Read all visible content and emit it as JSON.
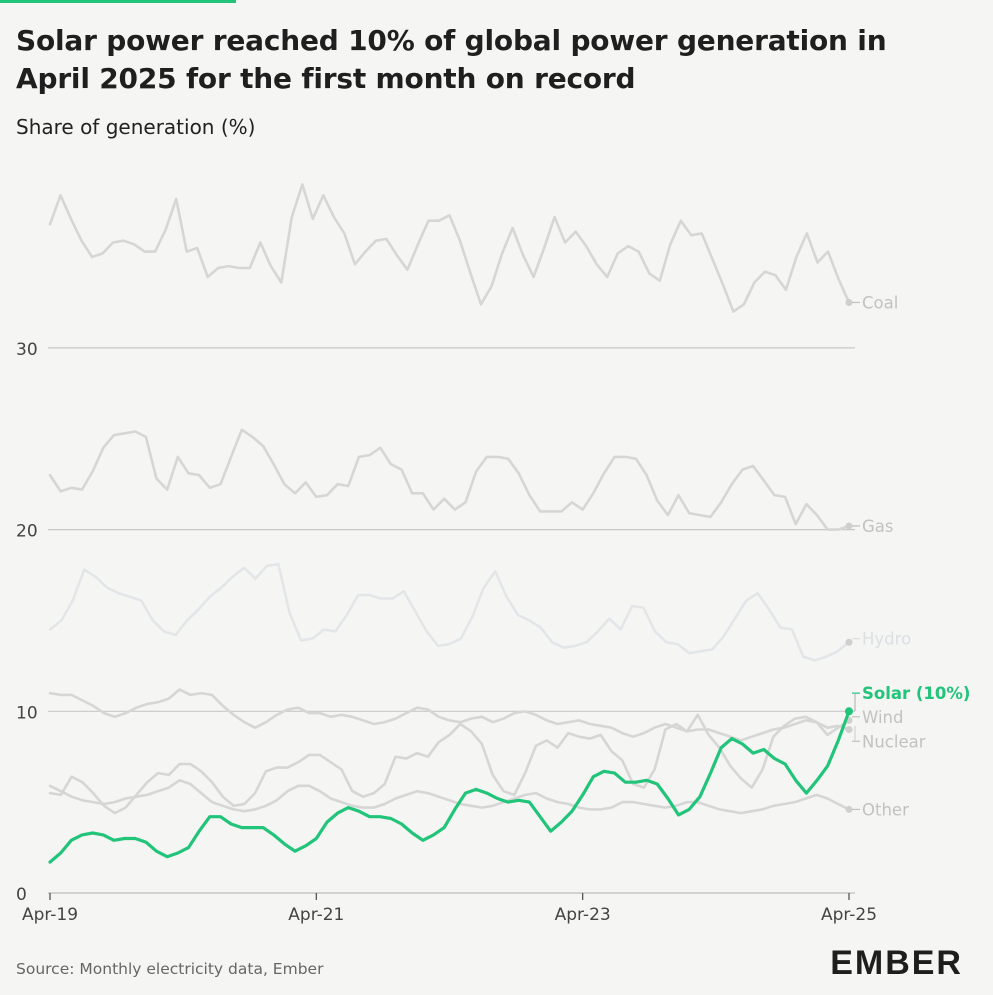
{
  "header": {
    "title": "Solar power reached 10% of global power generation in April 2025 for the first month on record",
    "subtitle": "Share of generation (%)"
  },
  "footer": {
    "source": "Source: Monthly electricity data, Ember",
    "logo_text": "EMBER"
  },
  "colors": {
    "accent": "#22c47a",
    "muted_line": "#d6d6d6",
    "muted_label": "#c2c2c2",
    "grid": "#c8c8c8",
    "axis_text": "#444444"
  },
  "chart_data": {
    "type": "line",
    "title": "Solar power reached 10% of global power generation in April 2025 for the first month on record",
    "ylabel": "Share of generation (%)",
    "xlabel": "",
    "x_start": "Apr-19",
    "x_end": "Apr-25",
    "x_ticks": [
      "Apr-19",
      "Apr-21",
      "Apr-23",
      "Apr-25"
    ],
    "y_ticks": [
      0,
      10,
      20,
      30
    ],
    "ylim": [
      0,
      39
    ],
    "grid": true,
    "series": [
      {
        "name": "Coal",
        "label": "Coal",
        "highlight": false,
        "values": [
          36.8,
          38.4,
          37.1,
          35.9,
          35.0,
          35.2,
          35.8,
          35.9,
          35.7,
          35.3,
          35.3,
          36.5,
          38.2,
          35.3,
          35.5,
          33.9,
          34.4,
          34.5,
          34.4,
          34.4,
          35.8,
          34.5,
          33.6,
          37.2,
          39.0,
          37.1,
          38.4,
          37.2,
          36.3,
          34.6,
          35.3,
          35.9,
          36.0,
          35.1,
          34.3,
          35.7,
          37.0,
          37.0,
          37.3,
          35.9,
          34.1,
          32.4,
          33.4,
          35.2,
          36.6,
          35.1,
          33.9,
          35.5,
          37.2,
          35.8,
          36.4,
          35.6,
          34.6,
          33.9,
          35.2,
          35.6,
          35.3,
          34.1,
          33.7,
          35.7,
          37.0,
          36.2,
          36.3,
          34.9,
          33.5,
          32.0,
          32.4,
          33.6,
          34.2,
          34.0,
          33.2,
          35.0,
          36.3,
          34.7,
          35.3,
          33.8,
          32.5
        ]
      },
      {
        "name": "Gas",
        "label": "Gas",
        "highlight": false,
        "values": [
          23.0,
          22.1,
          22.3,
          22.2,
          23.2,
          24.5,
          25.2,
          25.3,
          25.4,
          25.1,
          22.8,
          22.2,
          24.0,
          23.1,
          23.0,
          22.3,
          22.5,
          24.0,
          25.5,
          25.1,
          24.6,
          23.6,
          22.5,
          22.0,
          22.6,
          21.8,
          21.9,
          22.5,
          22.4,
          24.0,
          24.1,
          24.5,
          23.6,
          23.3,
          22.0,
          22.0,
          21.1,
          21.7,
          21.1,
          21.5,
          23.2,
          24.0,
          24.0,
          23.9,
          23.1,
          21.9,
          21.0,
          21.0,
          21.0,
          21.5,
          21.1,
          22.0,
          23.1,
          24.0,
          24.0,
          23.9,
          23.0,
          21.6,
          20.8,
          21.9,
          20.9,
          20.8,
          20.7,
          21.5,
          22.5,
          23.3,
          23.5,
          22.7,
          21.9,
          21.8,
          20.3,
          21.4,
          20.8,
          20.0,
          20.0,
          20.2
        ]
      },
      {
        "name": "Hydro",
        "label": "Hydro",
        "highlight": false,
        "values": [
          14.5,
          15.0,
          16.1,
          17.8,
          17.4,
          16.8,
          16.5,
          16.3,
          16.1,
          15.0,
          14.4,
          14.2,
          15.0,
          15.6,
          16.3,
          16.8,
          17.4,
          17.9,
          17.3,
          18.0,
          18.1,
          15.4,
          13.9,
          14.0,
          14.5,
          14.4,
          15.3,
          16.4,
          16.4,
          16.2,
          16.2,
          16.6,
          15.5,
          14.4,
          13.6,
          13.7,
          14.0,
          15.2,
          16.8,
          17.7,
          16.3,
          15.3,
          15.0,
          14.6,
          13.8,
          13.5,
          13.6,
          13.8,
          14.4,
          15.1,
          14.5,
          15.8,
          15.7,
          14.4,
          13.8,
          13.7,
          13.2,
          13.3,
          13.4,
          14.1,
          15.1,
          16.1,
          16.5,
          15.6,
          14.6,
          14.5,
          13.0,
          12.8,
          13.0,
          13.3,
          13.8
        ]
      },
      {
        "name": "Wind",
        "label": "Wind",
        "highlight": false,
        "values": [
          5.5,
          5.4,
          6.4,
          6.1,
          5.5,
          4.8,
          4.4,
          4.7,
          5.4,
          6.1,
          6.6,
          6.5,
          7.1,
          7.1,
          6.7,
          6.1,
          5.3,
          4.8,
          4.9,
          5.5,
          6.7,
          6.9,
          6.9,
          7.2,
          7.6,
          7.6,
          7.2,
          6.8,
          5.6,
          5.3,
          5.5,
          6.0,
          7.5,
          7.4,
          7.7,
          7.5,
          8.3,
          8.7,
          9.3,
          8.9,
          8.2,
          6.5,
          5.6,
          5.4,
          6.6,
          8.1,
          8.4,
          8.0,
          8.8,
          8.6,
          8.5,
          8.7,
          7.8,
          7.3,
          6.0,
          5.8,
          6.8,
          9.0,
          9.3,
          8.9,
          9.8,
          8.7,
          8.0,
          7.0,
          6.3,
          5.8,
          6.8,
          8.6,
          9.2,
          9.6,
          9.7,
          9.4,
          8.7,
          9.1,
          9.5
        ]
      },
      {
        "name": "Nuclear",
        "label": "Nuclear",
        "highlight": false,
        "values": [
          11.0,
          10.9,
          10.9,
          10.6,
          10.3,
          9.9,
          9.7,
          9.9,
          10.2,
          10.4,
          10.5,
          10.7,
          11.2,
          10.9,
          11.0,
          10.9,
          10.3,
          9.8,
          9.4,
          9.1,
          9.4,
          9.8,
          10.1,
          10.2,
          9.9,
          9.9,
          9.7,
          9.8,
          9.7,
          9.5,
          9.3,
          9.4,
          9.6,
          9.9,
          10.2,
          10.1,
          9.7,
          9.5,
          9.4,
          9.6,
          9.7,
          9.4,
          9.6,
          9.9,
          10.0,
          9.8,
          9.5,
          9.3,
          9.4,
          9.5,
          9.3,
          9.2,
          9.1,
          8.8,
          8.6,
          8.8,
          9.1,
          9.3,
          9.1,
          8.9,
          9.0,
          9.0,
          8.8,
          8.6,
          8.4,
          8.6,
          8.8,
          9.0,
          9.1,
          9.3,
          9.5,
          9.4,
          9.1,
          9.2,
          9.0
        ]
      },
      {
        "name": "Other",
        "label": "Other",
        "highlight": false,
        "values": [
          5.9,
          5.6,
          5.3,
          5.1,
          5.0,
          4.9,
          5.0,
          5.2,
          5.3,
          5.4,
          5.6,
          5.8,
          6.2,
          6.0,
          5.5,
          5.0,
          4.8,
          4.6,
          4.5,
          4.6,
          4.8,
          5.1,
          5.6,
          5.9,
          5.9,
          5.6,
          5.2,
          5.0,
          4.8,
          4.7,
          4.7,
          4.9,
          5.2,
          5.4,
          5.6,
          5.5,
          5.3,
          5.1,
          4.9,
          4.8,
          4.7,
          4.8,
          5.0,
          5.2,
          5.4,
          5.5,
          5.2,
          5.0,
          4.9,
          4.7,
          4.6,
          4.6,
          4.7,
          5.0,
          5.0,
          4.9,
          4.8,
          4.7,
          4.8,
          5.0,
          5.0,
          4.8,
          4.6,
          4.5,
          4.4,
          4.5,
          4.6,
          4.8,
          4.9,
          5.0,
          5.2,
          5.4,
          5.2,
          4.9,
          4.6
        ]
      },
      {
        "name": "Solar (10%)",
        "label": "Solar (10%)",
        "highlight": true,
        "values": [
          1.7,
          2.2,
          2.9,
          3.2,
          3.3,
          3.2,
          2.9,
          3.0,
          3.0,
          2.8,
          2.3,
          2.0,
          2.2,
          2.5,
          3.4,
          4.2,
          4.2,
          3.8,
          3.6,
          3.6,
          3.6,
          3.2,
          2.7,
          2.3,
          2.6,
          3.0,
          3.9,
          4.4,
          4.7,
          4.5,
          4.2,
          4.2,
          4.1,
          3.8,
          3.3,
          2.9,
          3.2,
          3.6,
          4.6,
          5.5,
          5.7,
          5.5,
          5.2,
          5.0,
          5.1,
          5.0,
          4.2,
          3.4,
          3.9,
          4.5,
          5.4,
          6.4,
          6.7,
          6.6,
          6.1,
          6.1,
          6.2,
          6.0,
          5.2,
          4.3,
          4.6,
          5.3,
          6.6,
          8.0,
          8.5,
          8.2,
          7.7,
          7.9,
          7.4,
          7.1,
          6.2,
          5.5,
          6.2,
          7.0,
          8.4,
          10.0
        ]
      }
    ]
  }
}
